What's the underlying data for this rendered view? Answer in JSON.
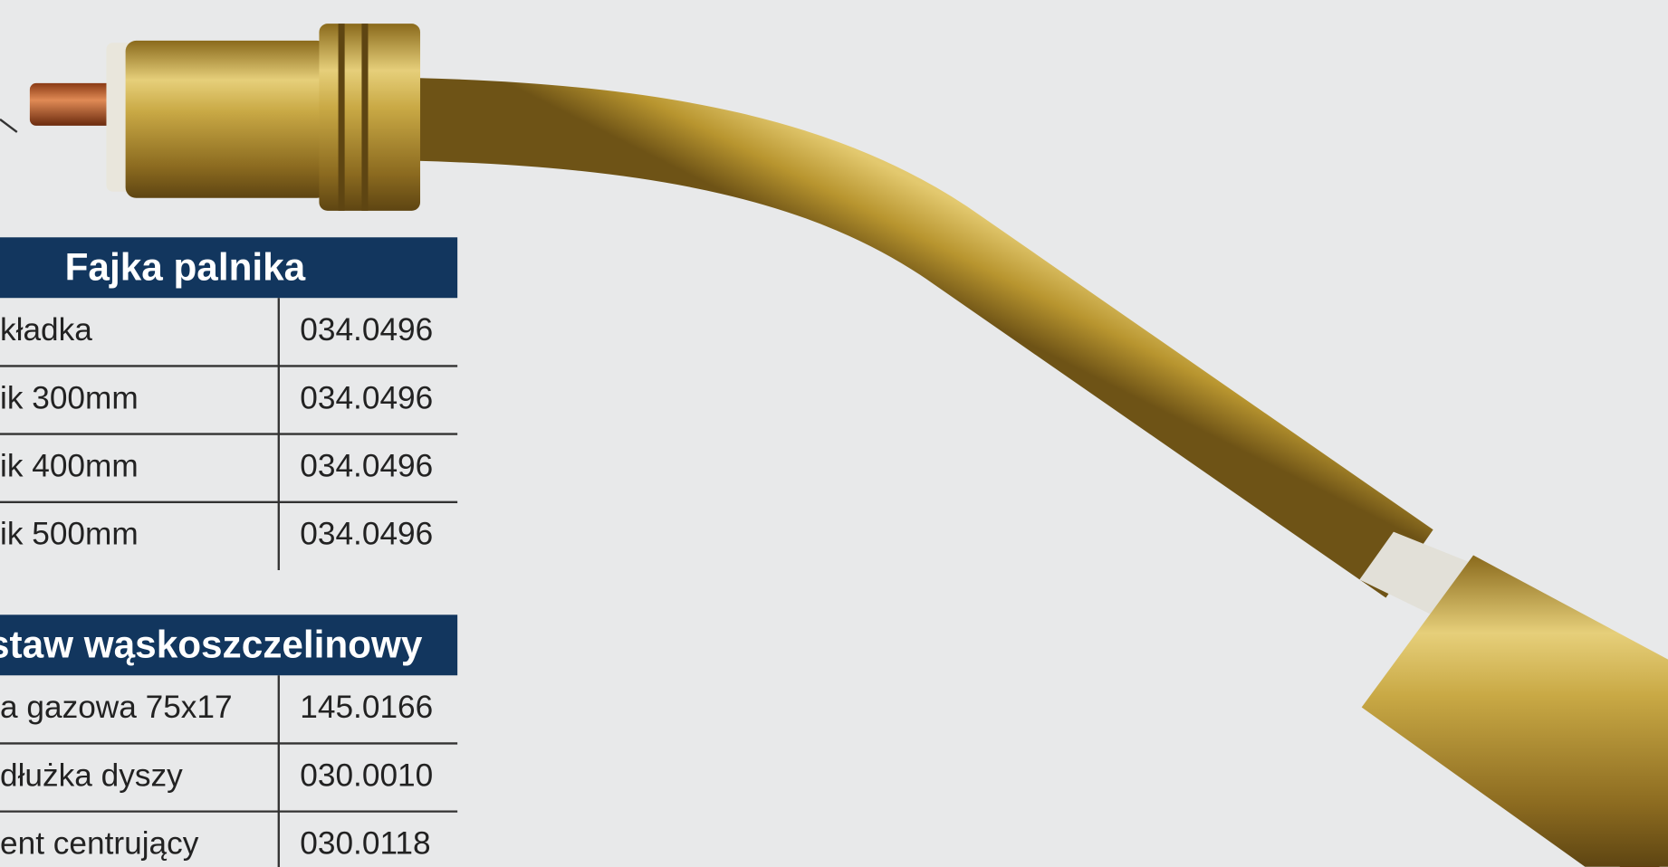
{
  "tables": [
    {
      "title": "Fajka palnika",
      "rows": [
        [
          "kładka",
          "034.0496"
        ],
        [
          "ik 300mm",
          "034.0496"
        ],
        [
          "ik 400mm",
          "034.0496"
        ],
        [
          "ik 500mm",
          "034.0496"
        ]
      ]
    },
    {
      "title": "staw wąskoszczelinowy",
      "rows": [
        [
          "a gazowa 75x17",
          "145.0166"
        ],
        [
          "dłużka dyszy",
          "030.0010"
        ],
        [
          "ent centrujący",
          "030.0118"
        ]
      ]
    }
  ]
}
